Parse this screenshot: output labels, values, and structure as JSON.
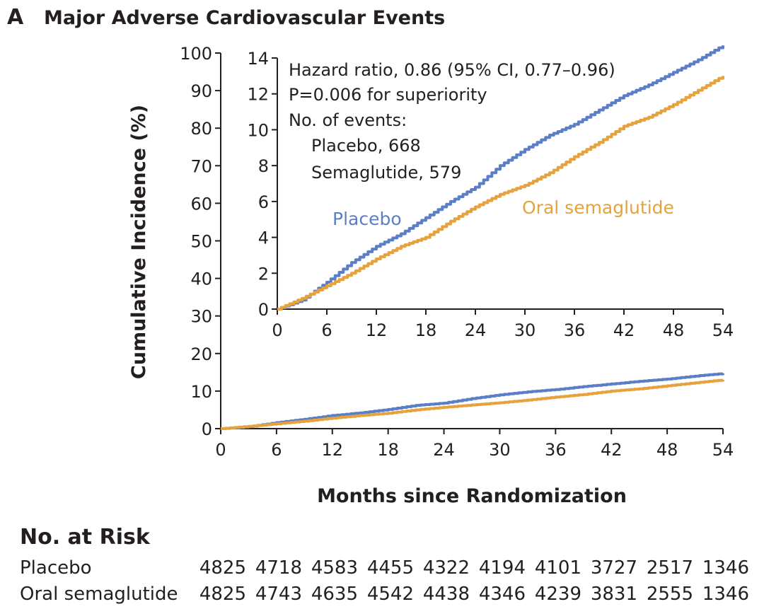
{
  "panel": {
    "letter": "A",
    "title": "Major Adverse Cardiovascular Events"
  },
  "chart_data": [
    {
      "type": "line",
      "role": "main",
      "ylabel": "Cumulative Incidence (%)",
      "xlabel": "Months since Randomization",
      "xlim": [
        0,
        54
      ],
      "ylim": [
        0,
        100
      ],
      "xticks": [
        0,
        6,
        12,
        18,
        24,
        30,
        36,
        42,
        48,
        54
      ],
      "yticks": [
        0,
        10,
        20,
        30,
        40,
        50,
        60,
        70,
        80,
        90,
        100
      ],
      "x": [
        0,
        3,
        6,
        9,
        12,
        15,
        18,
        21,
        24,
        27,
        30,
        33,
        36,
        39,
        42,
        45,
        48,
        51,
        54
      ],
      "series": [
        {
          "name": "Placebo",
          "color": "#5b7fc7",
          "values": [
            0,
            0.5,
            1.6,
            2.5,
            3.5,
            4.2,
            5.1,
            6.2,
            6.8,
            8.0,
            9.0,
            9.8,
            10.4,
            11.2,
            11.9,
            12.6,
            13.2,
            14.0,
            14.7
          ]
        },
        {
          "name": "Oral semaglutide",
          "color": "#e6a23c",
          "values": [
            0,
            0.6,
            1.3,
            2.0,
            2.8,
            3.5,
            4.1,
            5.0,
            5.7,
            6.3,
            6.9,
            7.6,
            8.4,
            9.1,
            10.0,
            10.6,
            11.4,
            12.2,
            13.0
          ]
        }
      ]
    },
    {
      "type": "line",
      "role": "inset",
      "xlim": [
        0,
        54
      ],
      "ylim": [
        0,
        14
      ],
      "xticks": [
        0,
        6,
        12,
        18,
        24,
        30,
        36,
        42,
        48,
        54
      ],
      "yticks": [
        0,
        2,
        4,
        6,
        8,
        10,
        12,
        14
      ],
      "x": [
        0,
        3,
        6,
        9,
        12,
        15,
        18,
        21,
        24,
        27,
        30,
        33,
        36,
        39,
        42,
        45,
        48,
        51,
        54
      ],
      "series": [
        {
          "name": "Placebo",
          "color": "#5b7fc7",
          "values": [
            0,
            0.5,
            1.5,
            2.6,
            3.5,
            4.2,
            5.1,
            6.0,
            6.8,
            8.0,
            8.9,
            9.7,
            10.3,
            11.1,
            11.9,
            12.5,
            13.2,
            13.9,
            14.7
          ]
        },
        {
          "name": "Oral semaglutide",
          "color": "#e6a23c",
          "values": [
            0,
            0.6,
            1.3,
            2.0,
            2.8,
            3.5,
            4.0,
            4.9,
            5.7,
            6.4,
            6.9,
            7.6,
            8.5,
            9.3,
            10.2,
            10.7,
            11.4,
            12.2,
            13.0
          ]
        }
      ],
      "annotations": [
        "Hazard ratio, 0.86 (95% CI, 0.77–0.96)",
        "P=0.006 for superiority",
        "No. of events:",
        "Placebo, 668",
        "Semaglutide, 579"
      ],
      "series_labels": [
        "Placebo",
        "Oral semaglutide"
      ]
    }
  ],
  "at_risk": {
    "title": "No. at Risk",
    "rows": [
      {
        "name": "Placebo",
        "values": [
          "4825",
          "4718",
          "4583",
          "4455",
          "4322",
          "4194",
          "4101",
          "3727",
          "2517",
          "1346"
        ]
      },
      {
        "name": "Oral semaglutide",
        "values": [
          "4825",
          "4743",
          "4635",
          "4542",
          "4438",
          "4346",
          "4239",
          "3831",
          "2555",
          "1346"
        ]
      }
    ]
  }
}
